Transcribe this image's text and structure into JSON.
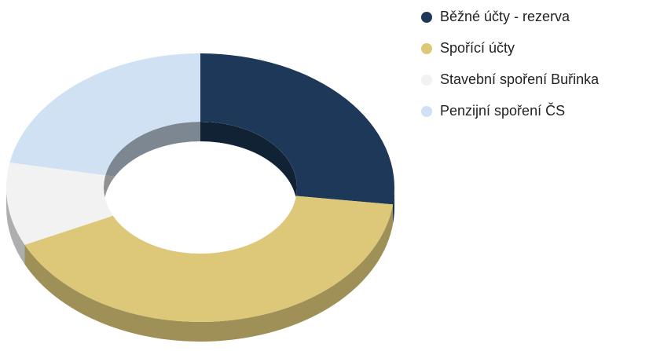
{
  "chart_data": {
    "type": "pie",
    "style": "donut-3d",
    "categories": [
      "Běžné účty - rezerva",
      "Spořící účty",
      "Stavební spoření Buřinka",
      "Penzijní spoření ČS"
    ],
    "values": [
      27,
      41,
      10,
      22
    ],
    "colors": [
      "#1e3859",
      "#dcc878",
      "#f2f2f2",
      "#cfe1f3"
    ],
    "legend": "right"
  }
}
